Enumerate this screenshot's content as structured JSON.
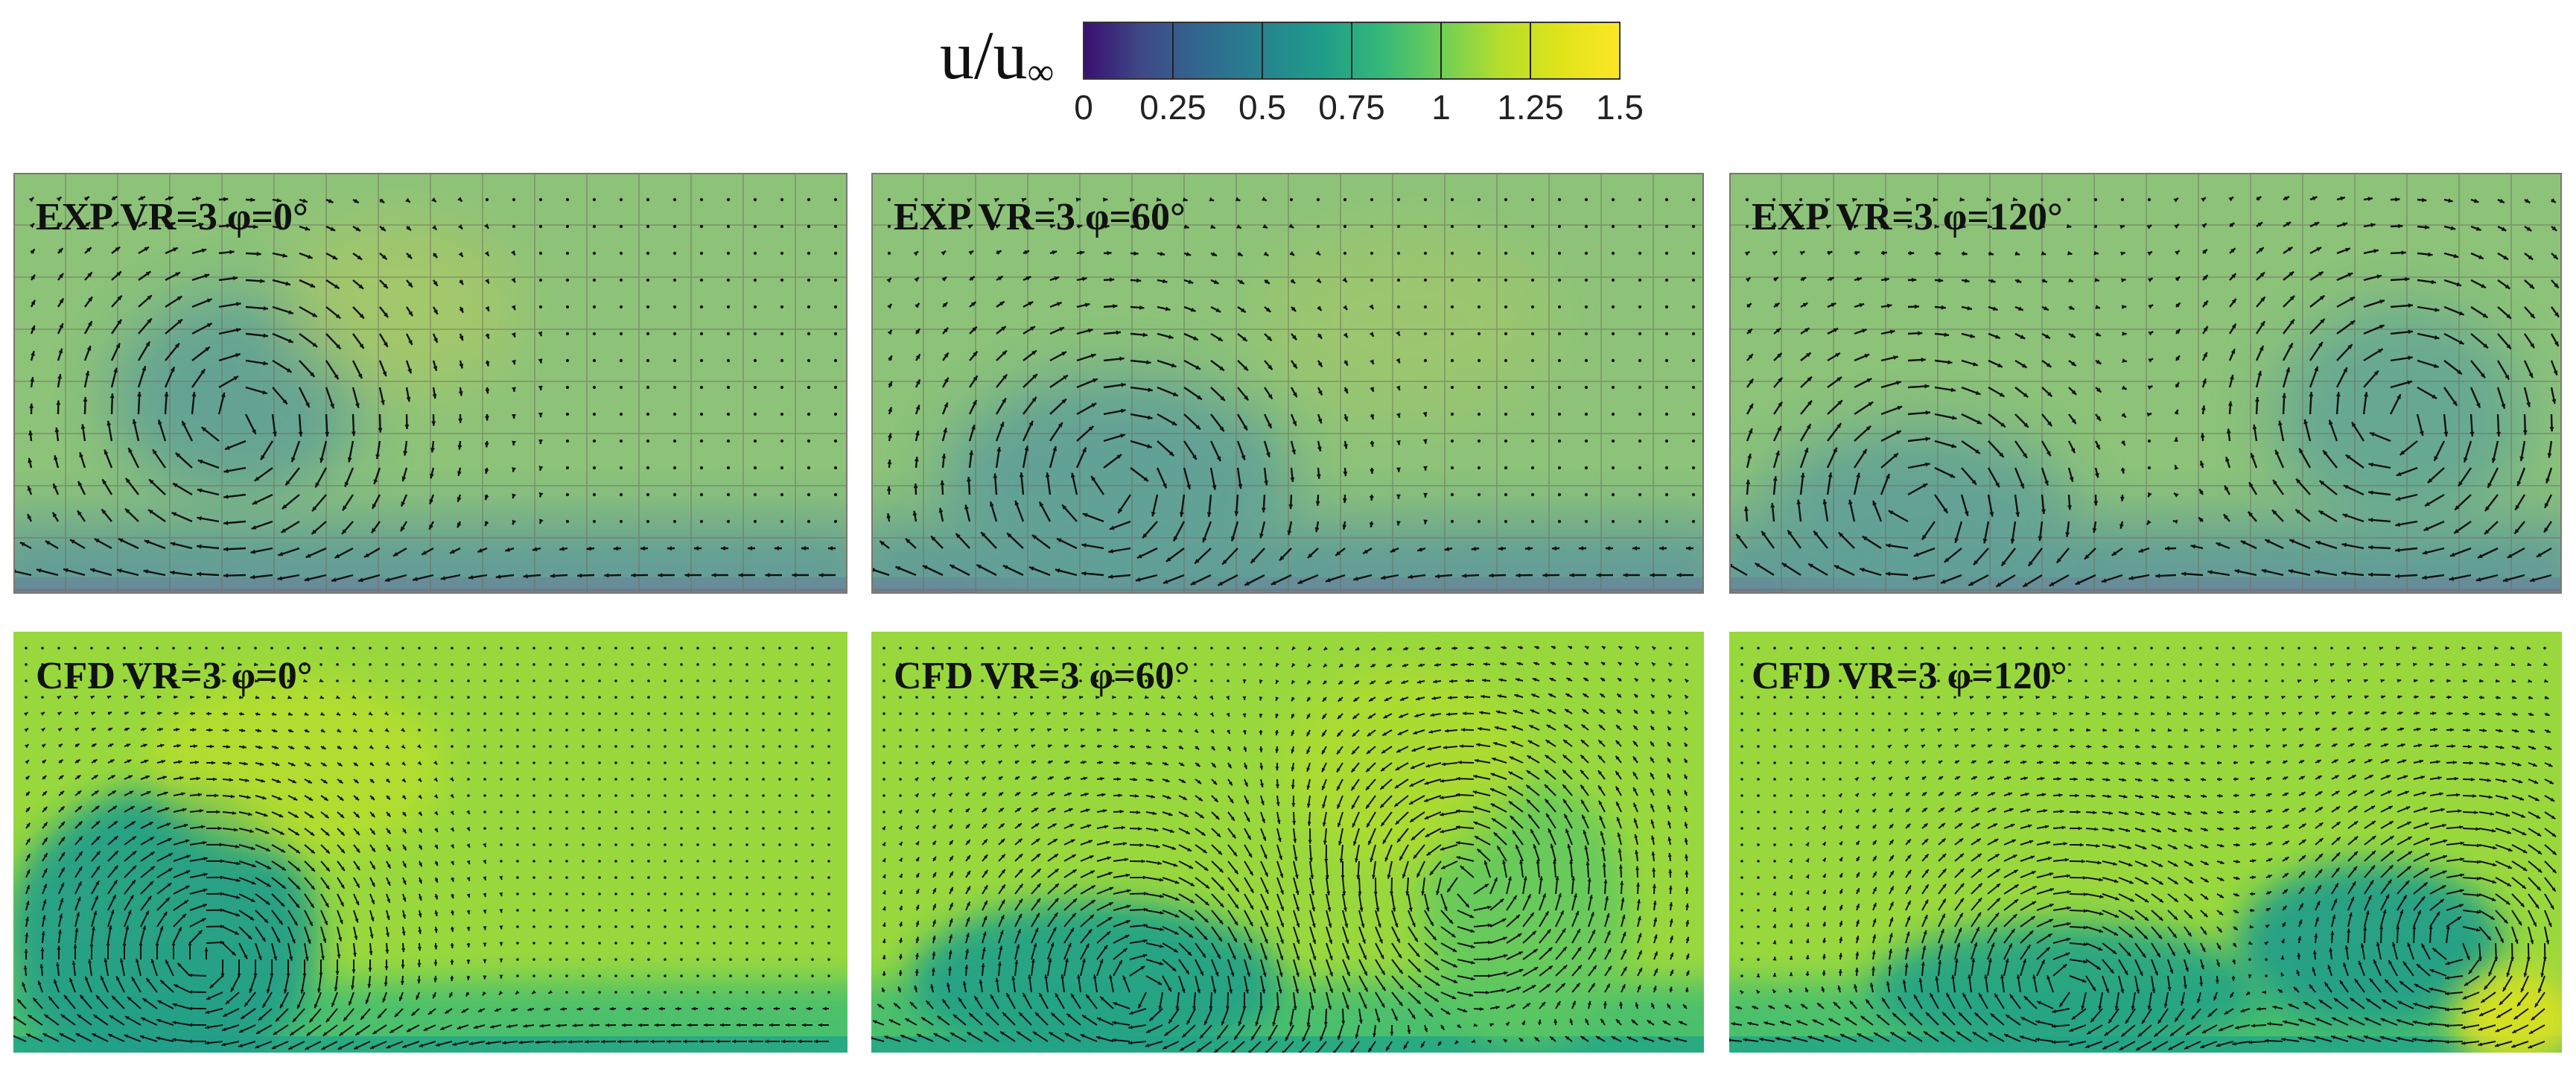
{
  "chart_data": {
    "type": "heatmap",
    "subtype": "velocity field with vector arrows",
    "colorbar": {
      "label_main": "u/u",
      "label_sub": "∞",
      "ticks": [
        "0",
        "0.25",
        "0.5",
        "0.75",
        "1",
        "1.25",
        "1.5"
      ],
      "range": [
        0,
        1.5
      ],
      "colormap": "parula",
      "colors": [
        "#3b0f70",
        "#3e4a89",
        "#31688e",
        "#26838f",
        "#1f9d8a",
        "#35b779",
        "#6ece58",
        "#b5de2b",
        "#e0e31a",
        "#fde725"
      ]
    },
    "panels": [
      {
        "title": "EXP VR=3 φ=0°",
        "source": "EXP",
        "VR": 3,
        "phase_deg": 0,
        "background_value": 1.0
      },
      {
        "title": "EXP VR=3 φ=60°",
        "source": "EXP",
        "VR": 3,
        "phase_deg": 60,
        "background_value": 1.0
      },
      {
        "title": "EXP VR=3 φ=120°",
        "source": "EXP",
        "VR": 3,
        "phase_deg": 120,
        "background_value": 1.0
      },
      {
        "title": "CFD VR=3 φ=0°",
        "source": "CFD",
        "VR": 3,
        "phase_deg": 0,
        "background_value": 1.1
      },
      {
        "title": "CFD VR=3 φ=60°",
        "source": "CFD",
        "VR": 3,
        "phase_deg": 60,
        "background_value": 1.1
      },
      {
        "title": "CFD VR=3 φ=120°",
        "source": "CFD",
        "VR": 3,
        "phase_deg": 120,
        "background_value": 1.1
      }
    ]
  }
}
